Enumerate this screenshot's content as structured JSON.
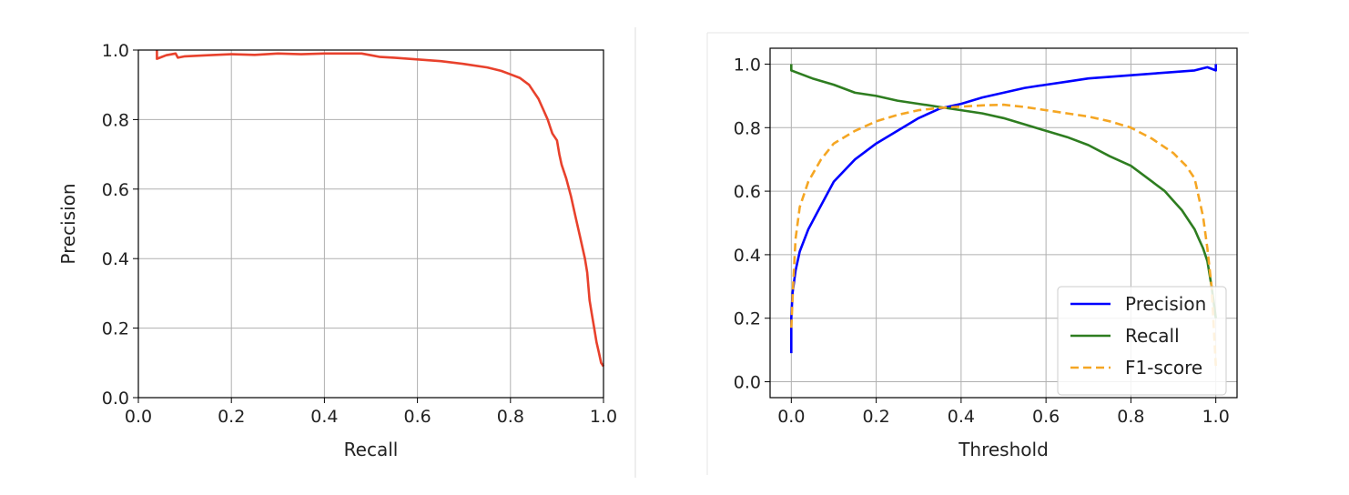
{
  "chart_data": [
    {
      "type": "line",
      "xlabel": "Recall",
      "ylabel": "Precision",
      "xlim": [
        0.0,
        1.0
      ],
      "ylim": [
        0.0,
        1.0
      ],
      "xticks": [
        "0.0",
        "0.2",
        "0.4",
        "0.6",
        "0.8",
        "1.0"
      ],
      "yticks": [
        "0.0",
        "0.2",
        "0.4",
        "0.6",
        "0.8",
        "1.0"
      ],
      "grid": true,
      "series": [
        {
          "color": "#e8412c",
          "x": [
            0.04,
            0.04,
            0.05,
            0.06,
            0.08,
            0.085,
            0.1,
            0.15,
            0.2,
            0.25,
            0.3,
            0.35,
            0.4,
            0.45,
            0.48,
            0.5,
            0.52,
            0.55,
            0.6,
            0.65,
            0.7,
            0.75,
            0.78,
            0.8,
            0.82,
            0.84,
            0.85,
            0.86,
            0.87,
            0.88,
            0.885,
            0.89,
            0.9,
            0.905,
            0.91,
            0.92,
            0.93,
            0.94,
            0.95,
            0.96,
            0.965,
            0.97,
            0.975,
            0.98,
            0.985,
            0.99,
            0.995,
            1.0
          ],
          "y": [
            1.0,
            0.975,
            0.98,
            0.985,
            0.99,
            0.978,
            0.982,
            0.985,
            0.988,
            0.986,
            0.99,
            0.988,
            0.99,
            0.99,
            0.99,
            0.985,
            0.98,
            0.978,
            0.973,
            0.968,
            0.96,
            0.95,
            0.94,
            0.93,
            0.92,
            0.9,
            0.88,
            0.86,
            0.83,
            0.8,
            0.78,
            0.76,
            0.74,
            0.7,
            0.67,
            0.63,
            0.58,
            0.52,
            0.46,
            0.4,
            0.36,
            0.28,
            0.24,
            0.2,
            0.16,
            0.13,
            0.1,
            0.09
          ]
        }
      ]
    },
    {
      "type": "line",
      "xlabel": "Threshold",
      "ylabel": "",
      "xlim": [
        -0.05,
        1.05
      ],
      "ylim": [
        -0.05,
        1.05
      ],
      "xticks": [
        "0.0",
        "0.2",
        "0.4",
        "0.6",
        "0.8",
        "1.0"
      ],
      "yticks": [
        "0.0",
        "0.2",
        "0.4",
        "0.6",
        "0.8",
        "1.0"
      ],
      "grid": true,
      "legend": "lower-right",
      "series": [
        {
          "name": "Precision",
          "color": "#0000ff",
          "style": "solid",
          "x": [
            0.0,
            0.0,
            0.003,
            0.01,
            0.02,
            0.04,
            0.06,
            0.08,
            0.1,
            0.15,
            0.2,
            0.25,
            0.3,
            0.35,
            0.4,
            0.45,
            0.5,
            0.55,
            0.6,
            0.65,
            0.7,
            0.75,
            0.8,
            0.85,
            0.9,
            0.95,
            0.98,
            1.0,
            1.0
          ],
          "y": [
            0.09,
            0.2,
            0.28,
            0.35,
            0.41,
            0.48,
            0.53,
            0.58,
            0.63,
            0.7,
            0.75,
            0.79,
            0.83,
            0.86,
            0.875,
            0.895,
            0.91,
            0.925,
            0.935,
            0.945,
            0.955,
            0.96,
            0.965,
            0.97,
            0.975,
            0.98,
            0.99,
            0.98,
            1.0
          ]
        },
        {
          "name": "Recall",
          "color": "#2e7d20",
          "style": "solid",
          "x": [
            0.0,
            0.0,
            0.01,
            0.03,
            0.05,
            0.1,
            0.15,
            0.2,
            0.25,
            0.3,
            0.35,
            0.4,
            0.45,
            0.5,
            0.55,
            0.6,
            0.65,
            0.7,
            0.75,
            0.8,
            0.85,
            0.88,
            0.9,
            0.92,
            0.94,
            0.95,
            0.96,
            0.97,
            0.98,
            0.99,
            1.0
          ],
          "y": [
            1.0,
            0.98,
            0.975,
            0.965,
            0.955,
            0.935,
            0.91,
            0.9,
            0.885,
            0.875,
            0.865,
            0.855,
            0.845,
            0.83,
            0.81,
            0.79,
            0.77,
            0.745,
            0.71,
            0.68,
            0.63,
            0.6,
            0.57,
            0.54,
            0.5,
            0.48,
            0.45,
            0.42,
            0.38,
            0.3,
            0.2
          ]
        },
        {
          "name": "F1-score",
          "color": "#f5a623",
          "style": "dashed",
          "x": [
            0.0,
            0.005,
            0.01,
            0.02,
            0.04,
            0.07,
            0.1,
            0.15,
            0.2,
            0.25,
            0.3,
            0.35,
            0.4,
            0.45,
            0.5,
            0.55,
            0.6,
            0.65,
            0.7,
            0.75,
            0.8,
            0.85,
            0.9,
            0.93,
            0.95,
            0.97,
            0.98,
            0.99,
            1.0
          ],
          "y": [
            0.17,
            0.32,
            0.45,
            0.55,
            0.63,
            0.7,
            0.75,
            0.79,
            0.82,
            0.84,
            0.855,
            0.862,
            0.866,
            0.87,
            0.872,
            0.865,
            0.855,
            0.845,
            0.835,
            0.82,
            0.8,
            0.765,
            0.72,
            0.68,
            0.64,
            0.52,
            0.42,
            0.3,
            0.05
          ]
        }
      ]
    }
  ]
}
